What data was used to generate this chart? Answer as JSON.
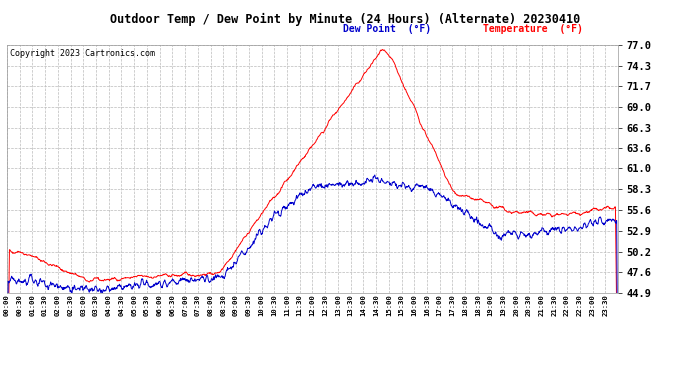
{
  "title": "Outdoor Temp / Dew Point by Minute (24 Hours) (Alternate) 20230410",
  "copyright": "Copyright 2023 Cartronics.com",
  "legend_dew": "Dew Point  (°F)",
  "legend_temp": "Temperature  (°F)",
  "y_min": 44.9,
  "y_max": 77.0,
  "y_ticks": [
    44.9,
    47.6,
    50.2,
    52.9,
    55.6,
    58.3,
    61.0,
    63.6,
    66.3,
    69.0,
    71.7,
    74.3,
    77.0
  ],
  "color_temp": "#ff0000",
  "color_dew": "#0000cc",
  "bg_color": "#ffffff",
  "grid_color": "#bbbbbb",
  "num_minutes": 1440,
  "seed": 42
}
